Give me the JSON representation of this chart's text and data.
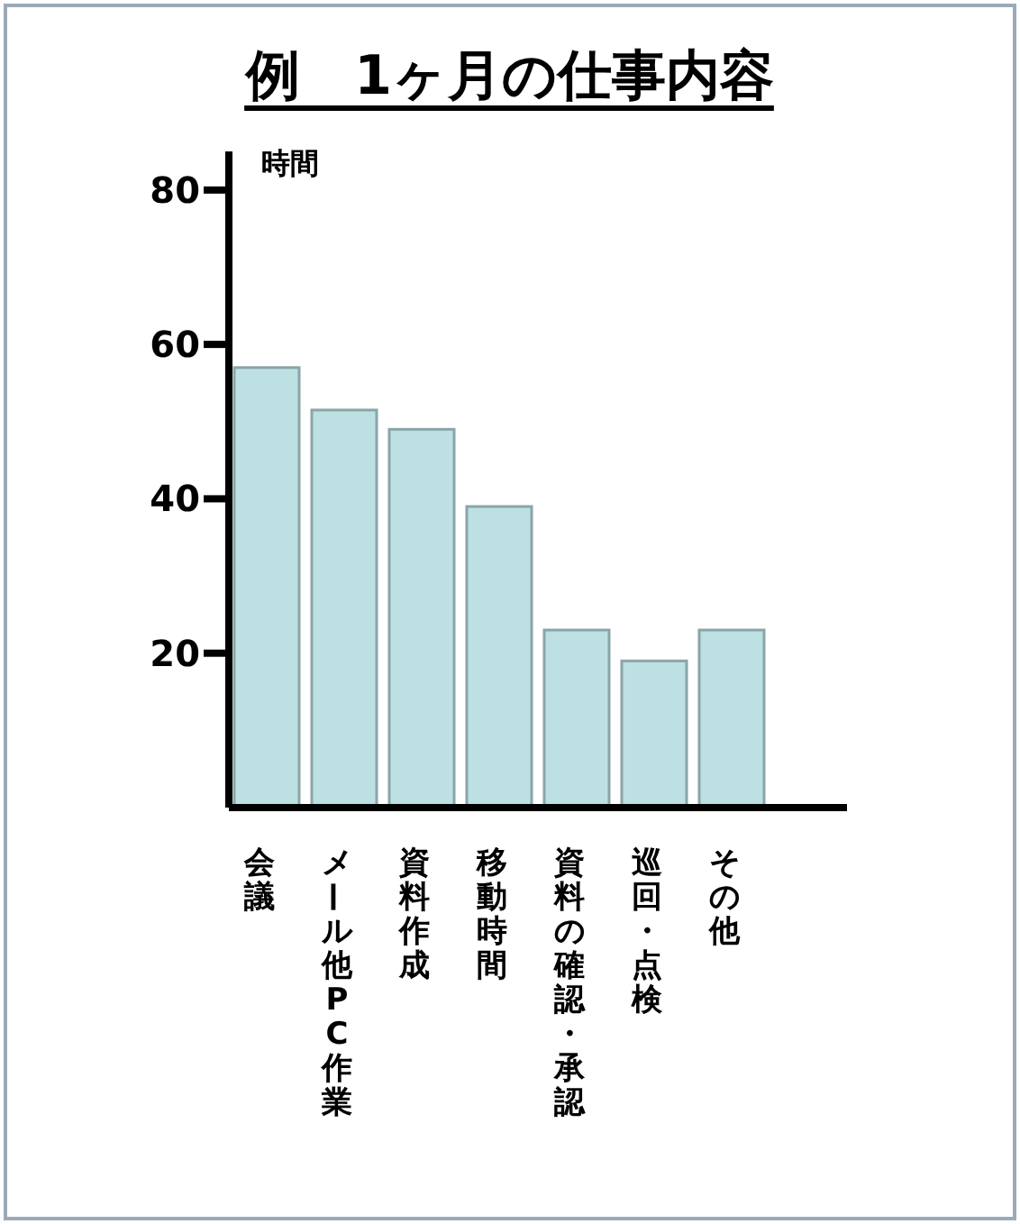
{
  "chart_data": {
    "type": "bar",
    "title": "例　1ヶ月の仕事内容",
    "ylabel": "時間",
    "categories": [
      "会議",
      "メール他PC作業",
      "資料作成",
      "移動時間",
      "資料の確認・承認",
      "巡回・点検",
      "その他"
    ],
    "values": [
      57,
      51.5,
      49,
      39,
      23,
      19,
      23
    ],
    "color": "#bde0e3",
    "ylim": [
      0,
      85
    ],
    "yticks": [
      20,
      40,
      60,
      80
    ],
    "grid": false
  }
}
